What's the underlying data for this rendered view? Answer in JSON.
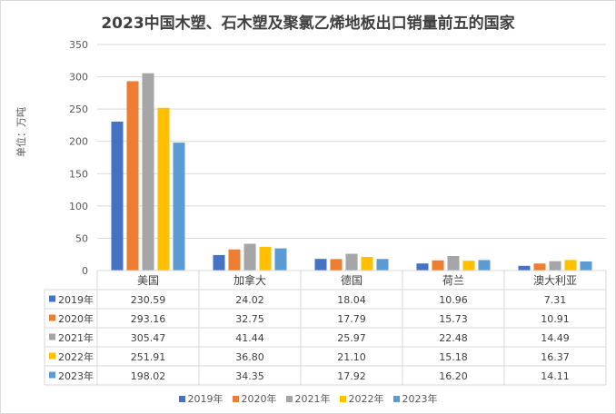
{
  "chart_data": {
    "type": "bar",
    "title": "2023中国木塑、石木塑及聚氯乙烯地板出口销量前五的国家",
    "ylabel": "单位：万吨",
    "xlabel": "",
    "ylim": [
      0,
      350
    ],
    "yticks": [
      0,
      50,
      100,
      150,
      200,
      250,
      300,
      350
    ],
    "categories": [
      "美国",
      "加拿大",
      "德国",
      "荷兰",
      "澳大利亚"
    ],
    "series": [
      {
        "name": "2019年",
        "color": "#4472c4",
        "values": [
          230.59,
          24.02,
          18.04,
          10.96,
          7.31
        ],
        "labels": [
          "230.59",
          "24.02",
          "18.04",
          "10.96",
          "7.31"
        ]
      },
      {
        "name": "2020年",
        "color": "#ed7d31",
        "values": [
          293.16,
          32.75,
          17.79,
          15.73,
          10.91
        ],
        "labels": [
          "293.16",
          "32.75",
          "17.79",
          "15.73",
          "10.91"
        ]
      },
      {
        "name": "2021年",
        "color": "#a5a5a5",
        "values": [
          305.47,
          41.44,
          25.97,
          22.48,
          14.49
        ],
        "labels": [
          "305.47",
          "41.44",
          "25.97",
          "22.48",
          "14.49"
        ]
      },
      {
        "name": "2022年",
        "color": "#ffc000",
        "values": [
          251.91,
          36.8,
          21.1,
          15.18,
          16.37
        ],
        "labels": [
          "251.91",
          "36.80",
          "21.10",
          "15.18",
          "16.37"
        ]
      },
      {
        "name": "2023年",
        "color": "#5b9bd5",
        "values": [
          198.02,
          34.35,
          17.92,
          16.2,
          14.11
        ],
        "labels": [
          "198.02",
          "34.35",
          "17.92",
          "16.20",
          "14.11"
        ]
      }
    ],
    "grid": true,
    "legend_position": "bottom",
    "data_table": true
  }
}
